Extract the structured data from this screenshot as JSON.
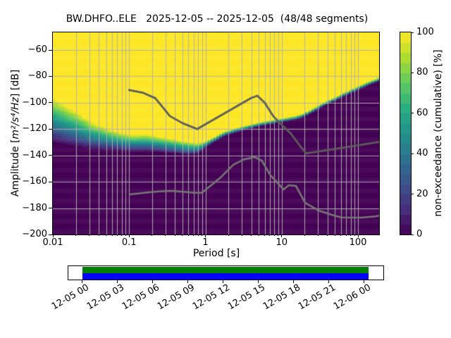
{
  "title": "BW.DHFO..ELE   2025-12-05 -- 2025-12-05  (48/48 segments)",
  "x_axis": {
    "label": "Period [s]",
    "scale": "log",
    "tick_labels": [
      "0.01",
      "0.1",
      "1",
      "10",
      "100"
    ],
    "tick_values": [
      0.01,
      0.1,
      1,
      10,
      100
    ]
  },
  "y_axis": {
    "label_prefix": "Amplitude [",
    "label_math": "m²/s⁴/Hz",
    "label_suffix": "] [dB]",
    "tick_labels": [
      "−60",
      "−80",
      "−100",
      "−120",
      "−140",
      "−160",
      "−180",
      "−200"
    ],
    "tick_values": [
      -60,
      -80,
      -100,
      -120,
      -140,
      -160,
      -180,
      -200
    ]
  },
  "colorbar": {
    "label": "non-exceedance (cumulative) [%]",
    "tick_labels": [
      "0",
      "20",
      "40",
      "60",
      "80",
      "100"
    ],
    "tick_values": [
      0,
      20,
      40,
      60,
      80,
      100
    ],
    "colormap": "viridis",
    "levels": 20
  },
  "timeline": {
    "tick_labels": [
      "12-05 00",
      "12-05 03",
      "12-05 06",
      "12-05 09",
      "12-05 12",
      "12-05 15",
      "12-05 18",
      "12-05 21",
      "12-06 00"
    ],
    "used_color": "#008000",
    "data_color": "#0000ff"
  },
  "chart_data": {
    "type": "heatmap",
    "title": "BW.DHFO..ELE   2025-12-05 -- 2025-12-05  (48/48 segments)",
    "station": "BW.DHFO..ELE",
    "date_start": "2025-12-05",
    "date_end": "2025-12-05",
    "segments_used": 48,
    "segments_total": 48,
    "xlabel": "Period [s]",
    "ylabel": "Amplitude [m²/s⁴/Hz] [dB]",
    "colorbar_label": "non-exceedance (cumulative) [%]",
    "x_scale": "log",
    "xlim": [
      0.01,
      189.6
    ],
    "ylim": [
      -200,
      -46.6
    ],
    "grid": true,
    "legend_position": "none",
    "cumulative_distribution": {
      "description": "per period [s]: [period, 50% non-exceedance level dB, 5-95% width dB]",
      "points": [
        [
          0.01,
          -113.0,
          34
        ],
        [
          0.015,
          -117.0,
          30
        ],
        [
          0.022,
          -121.0,
          26
        ],
        [
          0.033,
          -125.0,
          21
        ],
        [
          0.05,
          -127.5,
          17
        ],
        [
          0.075,
          -129.5,
          14
        ],
        [
          0.11,
          -130.5,
          13
        ],
        [
          0.17,
          -130.3,
          13
        ],
        [
          0.25,
          -131.5,
          12
        ],
        [
          0.4,
          -133.0,
          11
        ],
        [
          0.6,
          -134.5,
          10
        ],
        [
          0.8,
          -134.5,
          8
        ],
        [
          1.0,
          -131.5,
          5
        ],
        [
          1.3,
          -127.8,
          4
        ],
        [
          1.8,
          -123.5,
          3.5
        ],
        [
          2.6,
          -120.4,
          3.5
        ],
        [
          4.0,
          -117.7,
          3
        ],
        [
          5.3,
          -116.2,
          3
        ],
        [
          8.0,
          -114.2,
          3
        ],
        [
          10.7,
          -112.9,
          3
        ],
        [
          15.0,
          -111.4,
          3
        ],
        [
          19.0,
          -109.8,
          3
        ],
        [
          24.0,
          -106.5,
          3
        ],
        [
          36.0,
          -100.9,
          3
        ],
        [
          55.0,
          -96.0,
          3
        ],
        [
          85.0,
          -90.6,
          3
        ],
        [
          130.0,
          -85.9,
          3
        ],
        [
          189.6,
          -82.2,
          3
        ]
      ]
    },
    "noise_models": {
      "high_color": "#5c5c5c",
      "low_color": "#767676",
      "high": [
        [
          0.1,
          -90.3
        ],
        [
          0.15,
          -92.3
        ],
        [
          0.22,
          -96.5
        ],
        [
          0.3,
          -106.0
        ],
        [
          0.34,
          -110.0
        ],
        [
          0.5,
          -115.5
        ],
        [
          0.78,
          -120.0
        ],
        [
          4.0,
          -96.3
        ],
        [
          4.8,
          -94.7
        ],
        [
          6.0,
          -100.0
        ],
        [
          7.7,
          -110.0
        ],
        [
          9.5,
          -115.5
        ],
        [
          13.0,
          -123.0
        ],
        [
          17.0,
          -132.0
        ],
        [
          21.0,
          -138.5
        ],
        [
          189.6,
          -129.8
        ]
      ],
      "low": [
        [
          0.104,
          -169.5
        ],
        [
          0.16,
          -168.3
        ],
        [
          0.25,
          -167.3
        ],
        [
          0.35,
          -166.9
        ],
        [
          0.5,
          -167.5
        ],
        [
          0.7,
          -168.3
        ],
        [
          0.9,
          -168.3
        ],
        [
          1.2,
          -162.5
        ],
        [
          1.63,
          -156.0
        ],
        [
          2.33,
          -147.0
        ],
        [
          3.2,
          -143.0
        ],
        [
          4.4,
          -141.2
        ],
        [
          5.5,
          -144.0
        ],
        [
          7.0,
          -154.5
        ],
        [
          10.6,
          -165.8
        ],
        [
          12.4,
          -162.6
        ],
        [
          15.4,
          -163.2
        ],
        [
          20.3,
          -176.0
        ],
        [
          31.0,
          -182.0
        ],
        [
          45.0,
          -185.0
        ],
        [
          60.0,
          -187.0
        ],
        [
          110.0,
          -187.2
        ],
        [
          170.0,
          -186.2
        ],
        [
          189.6,
          -185.7
        ]
      ]
    }
  }
}
